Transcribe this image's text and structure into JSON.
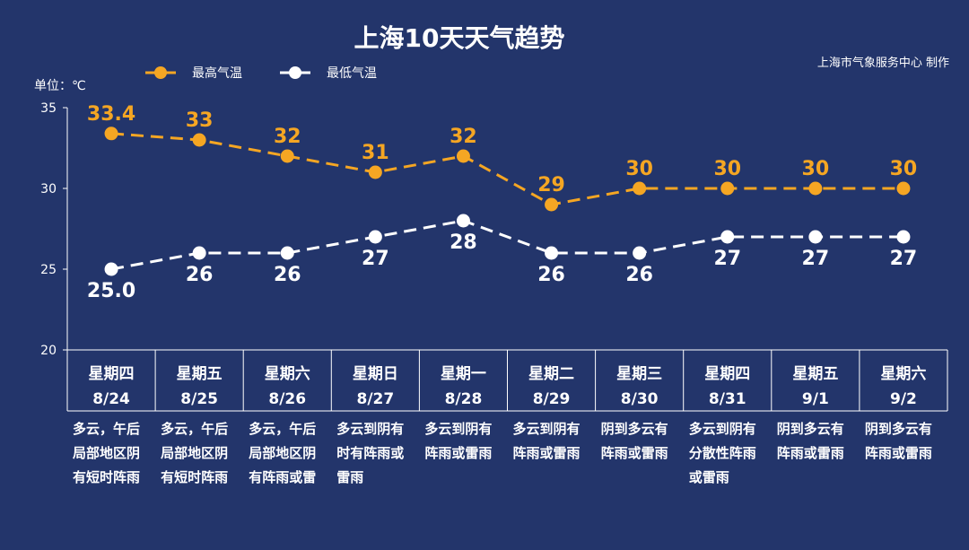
{
  "chart_data": {
    "type": "line",
    "title": "上海10天天气趋势",
    "credit": "上海市气象服务中心 制作",
    "unit_label": "单位：℃",
    "ylim": [
      20,
      35
    ],
    "yticks": [
      20,
      25,
      30,
      35
    ],
    "grid": false,
    "legend_position": "top-left",
    "categories": [
      {
        "weekday": "星期四",
        "date": "8/24",
        "weather": [
          "多云，午后",
          "局部地区阴",
          "有短时阵雨"
        ]
      },
      {
        "weekday": "星期五",
        "date": "8/25",
        "weather": [
          "多云，午后",
          "局部地区阴",
          "有短时阵雨"
        ]
      },
      {
        "weekday": "星期六",
        "date": "8/26",
        "weather": [
          "多云，午后",
          "局部地区阴",
          "有阵雨或雷"
        ]
      },
      {
        "weekday": "星期日",
        "date": "8/27",
        "weather": [
          "多云到阴有",
          "时有阵雨或",
          "雷雨"
        ]
      },
      {
        "weekday": "星期一",
        "date": "8/28",
        "weather": [
          "多云到阴有",
          "阵雨或雷雨"
        ]
      },
      {
        "weekday": "星期二",
        "date": "8/29",
        "weather": [
          "多云到阴有",
          "阵雨或雷雨"
        ]
      },
      {
        "weekday": "星期三",
        "date": "8/30",
        "weather": [
          "阴到多云有",
          "阵雨或雷雨"
        ]
      },
      {
        "weekday": "星期四",
        "date": "8/31",
        "weather": [
          "多云到阴有",
          "分散性阵雨",
          "或雷雨"
        ]
      },
      {
        "weekday": "星期五",
        "date": "9/1",
        "weather": [
          "阴到多云有",
          "阵雨或雷雨"
        ]
      },
      {
        "weekday": "星期六",
        "date": "9/2",
        "weather": [
          "阴到多云有",
          "阵雨或雷雨"
        ]
      }
    ],
    "series": [
      {
        "name": "最高气温",
        "color": "#f5a623",
        "values": [
          33.4,
          33,
          32,
          31,
          32,
          29,
          30,
          30,
          30,
          30
        ],
        "labels": [
          "33.4",
          "33",
          "32",
          "31",
          "32",
          "29",
          "30",
          "30",
          "30",
          "30"
        ]
      },
      {
        "name": "最低气温",
        "color": "#ffffff",
        "values": [
          25.0,
          26,
          26,
          27,
          28,
          26,
          26,
          27,
          27,
          27
        ],
        "labels": [
          "25.0",
          "26",
          "26",
          "27",
          "28",
          "26",
          "26",
          "27",
          "27",
          "27"
        ]
      }
    ]
  }
}
